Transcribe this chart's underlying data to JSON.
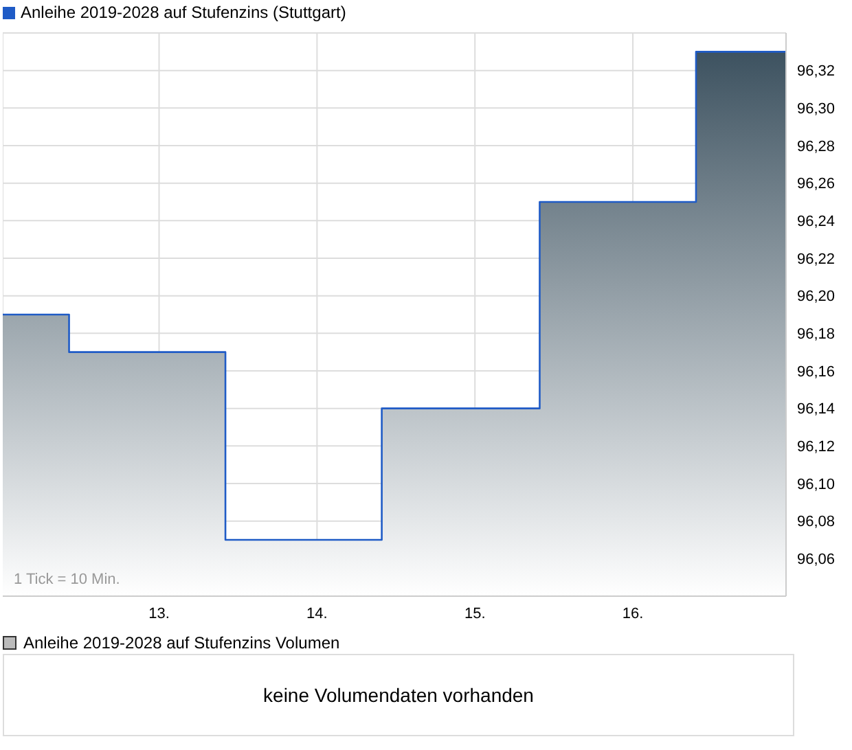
{
  "chart_data": [
    {
      "type": "area",
      "x": [
        12.01,
        12.43,
        12.43,
        13.42,
        13.42,
        14.41,
        14.41,
        15.41,
        15.41,
        16.4,
        16.4,
        16.97
      ],
      "series": [
        {
          "name": "Anleihe 2019-2028 auf Stufenzins (Stuttgart)",
          "color": "#1f5bc6",
          "values": [
            96.19,
            96.19,
            96.17,
            96.17,
            96.07,
            96.07,
            96.14,
            96.14,
            96.25,
            96.25,
            96.33,
            96.33
          ]
        }
      ],
      "xlim": [
        12.01,
        16.97
      ],
      "xticks": [
        {
          "value": 13,
          "label": "13."
        },
        {
          "value": 14,
          "label": "14."
        },
        {
          "value": 15,
          "label": "15."
        },
        {
          "value": 16,
          "label": "16."
        }
      ],
      "ylim": [
        96.04,
        96.34
      ],
      "yticks": [
        {
          "value": 96.06,
          "label": "96,06"
        },
        {
          "value": 96.08,
          "label": "96,08"
        },
        {
          "value": 96.1,
          "label": "96,10"
        },
        {
          "value": 96.12,
          "label": "96,12"
        },
        {
          "value": 96.14,
          "label": "96,14"
        },
        {
          "value": 96.16,
          "label": "96,16"
        },
        {
          "value": 96.18,
          "label": "96,18"
        },
        {
          "value": 96.2,
          "label": "96,20"
        },
        {
          "value": 96.22,
          "label": "96,22"
        },
        {
          "value": 96.24,
          "label": "96,24"
        },
        {
          "value": 96.26,
          "label": "96,26"
        },
        {
          "value": 96.28,
          "label": "96,28"
        },
        {
          "value": 96.3,
          "label": "96,30"
        },
        {
          "value": 96.32,
          "label": "96,32"
        }
      ],
      "grid": true,
      "legend": "top left",
      "marker": "none",
      "line_style": "solid",
      "annotations": [
        "1 Tick = 10 Min."
      ]
    },
    {
      "type": "other",
      "title": "Anleihe 2019-2028 auf Stufenzins Volumen",
      "annotations": [
        "keine Volumendaten vorhanden"
      ]
    }
  ]
}
